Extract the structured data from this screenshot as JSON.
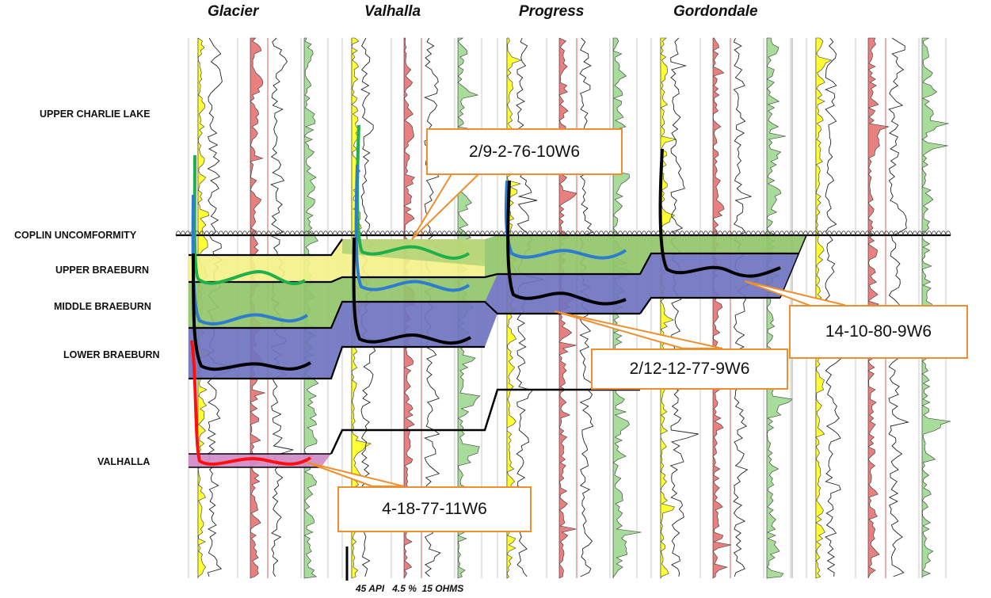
{
  "fields": [
    {
      "name": "Glacier"
    },
    {
      "name": "Valhalla"
    },
    {
      "name": "Progress"
    },
    {
      "name": "Gordondale"
    }
  ],
  "formations": {
    "upper_charlie_lake": "UPPER CHARLIE LAKE",
    "coplin_unconformity": "COPLIN UNCOMFORMITY",
    "upper_braeburn": "UPPER BRAEBURN",
    "middle_braeburn": "MIDDLE BRAEBURN",
    "lower_braeburn": "LOWER BRAEBURN",
    "valhalla": "VALHALLA"
  },
  "wells": [
    {
      "label": "2/9-2-76-10W6"
    },
    {
      "label": "14-10-80-9W6"
    },
    {
      "label": "2/12-12-77-9W6"
    },
    {
      "label": "4-18-77-11W6"
    }
  ],
  "scale": {
    "text": "45 API   4.5 %  15 OHMS"
  },
  "colors": {
    "upper_braeburn": "#f3f18a",
    "middle_braeburn": "#93c66b",
    "lower_braeburn": "#6f73c0",
    "valhalla": "#d18ac8",
    "callout_border": "#ee8f2f",
    "gamma_fill": "#ffff33",
    "porosity_fill": "#e88080",
    "resistivity_fill": "#a8dc9a",
    "well_green": "#1fb04b",
    "well_blue": "#2e7cd0",
    "well_black": "#000000",
    "well_red": "#ff1010"
  }
}
